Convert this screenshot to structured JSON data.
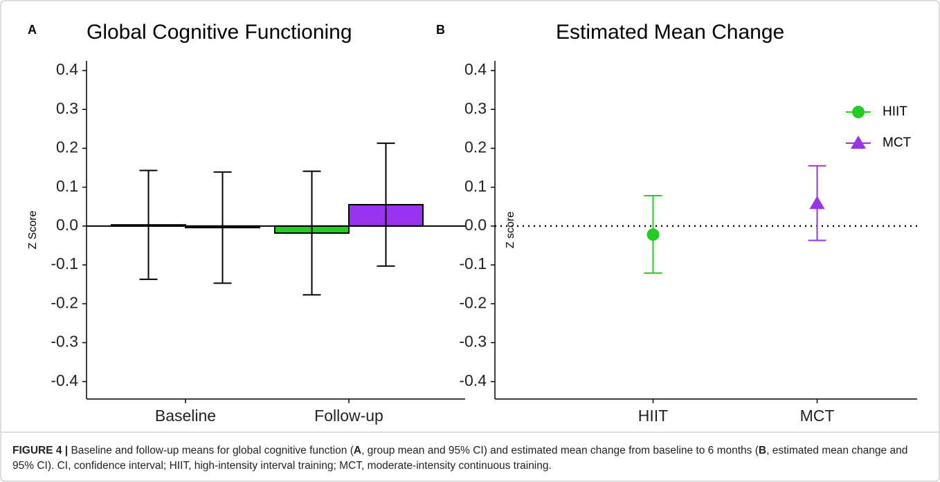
{
  "chart_data": [
    {
      "type": "bar",
      "panel": "A",
      "title": "Global Cognitive Functioning",
      "y_label": "Z Score",
      "categories": [
        "Baseline",
        "Follow-up"
      ],
      "series": [
        {
          "color": "#22cc22",
          "values": [
            0.003,
            -0.018
          ],
          "ci_low": [
            -0.137,
            -0.177
          ],
          "ci_high": [
            0.143,
            0.141
          ]
        },
        {
          "color": "#9933ee",
          "values": [
            -0.004,
            0.055
          ],
          "ci_low": [
            -0.147,
            -0.103
          ],
          "ci_high": [
            0.139,
            0.213
          ]
        }
      ],
      "ylim": [
        -0.445,
        0.425
      ],
      "yticks": [
        -0.4,
        -0.3,
        -0.2,
        -0.1,
        {
          "value": 0,
          "label": "0.0"
        },
        0.1,
        0.2,
        0.3,
        0.4
      ]
    },
    {
      "type": "point",
      "panel": "B",
      "title": "Estimated Mean Change",
      "y_label": "Z score",
      "categories": [
        "HIIT",
        "MCT"
      ],
      "series": [
        {
          "name": "HIIT",
          "color": "#22cc22",
          "marker": "circle",
          "values": [
            -0.022,
            null
          ],
          "ci_low": [
            -0.121,
            null
          ],
          "ci_high": [
            0.078,
            null
          ]
        },
        {
          "name": "MCT",
          "color": "#9933ee",
          "marker": "triangle",
          "values": [
            null,
            0.058
          ],
          "ci_low": [
            null,
            -0.037
          ],
          "ci_high": [
            null,
            0.155
          ]
        }
      ],
      "reference_line": 0,
      "legend": "top-right",
      "ylim": [
        -0.445,
        0.425
      ],
      "yticks": [
        -0.4,
        -0.3,
        -0.2,
        -0.1,
        {
          "value": 0,
          "label": "0.0"
        },
        0.1,
        0.2,
        0.3,
        0.4
      ]
    }
  ],
  "caption": {
    "label": "FIGURE 4 |",
    "parts": [
      " Baseline and follow-up means for global cognitive function (",
      "A",
      ", group mean and 95% CI) and estimated mean change from baseline to 6 months (",
      "B",
      ", estimated mean change and 95% CI). CI, confidence interval; HIIT, high-intensity interval training; MCT, moderate-intensity continuous training."
    ]
  }
}
